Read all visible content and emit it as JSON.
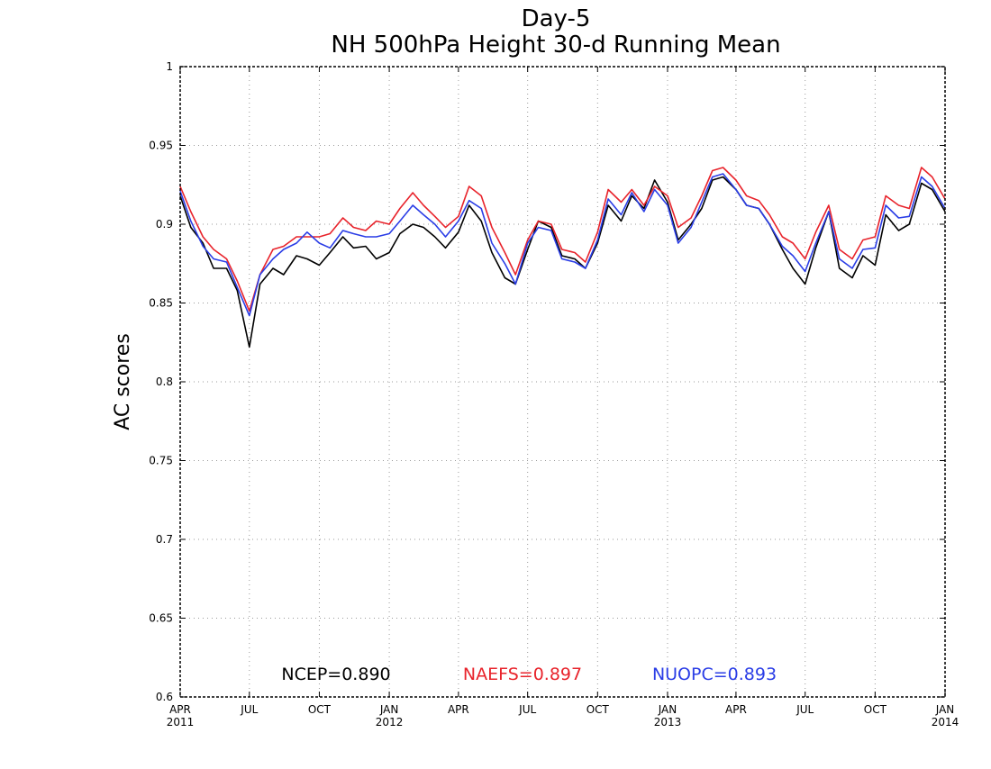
{
  "chart_data": {
    "type": "line",
    "title": "Day-5",
    "subtitle": "NH 500hPa Height 30-d Running Mean",
    "xlabel": "",
    "ylabel": "AC scores",
    "ylim": [
      0.6,
      1.0
    ],
    "xlim": [
      "2011-04-01",
      "2014-01-01"
    ],
    "grid": true,
    "legend_placement": "bottom-center",
    "x_ticks": [
      {
        "date": "2011-04-01",
        "label": "APR",
        "year": "2011"
      },
      {
        "date": "2011-07-01",
        "label": "JUL",
        "year": ""
      },
      {
        "date": "2011-10-01",
        "label": "OCT",
        "year": ""
      },
      {
        "date": "2012-01-01",
        "label": "JAN",
        "year": "2012"
      },
      {
        "date": "2012-04-01",
        "label": "APR",
        "year": ""
      },
      {
        "date": "2012-07-01",
        "label": "JUL",
        "year": ""
      },
      {
        "date": "2012-10-01",
        "label": "OCT",
        "year": ""
      },
      {
        "date": "2013-01-01",
        "label": "JAN",
        "year": "2013"
      },
      {
        "date": "2013-04-01",
        "label": "APR",
        "year": ""
      },
      {
        "date": "2013-07-01",
        "label": "JUL",
        "year": ""
      },
      {
        "date": "2013-10-01",
        "label": "OCT",
        "year": ""
      },
      {
        "date": "2014-01-01",
        "label": "JAN",
        "year": "2014"
      }
    ],
    "y_ticks": [
      {
        "value": 0.6,
        "label": "0.6"
      },
      {
        "value": 0.65,
        "label": "0.65"
      },
      {
        "value": 0.7,
        "label": "0.7"
      },
      {
        "value": 0.75,
        "label": "0.75"
      },
      {
        "value": 0.8,
        "label": "0.8"
      },
      {
        "value": 0.85,
        "label": "0.85"
      },
      {
        "value": 0.9,
        "label": "0.9"
      },
      {
        "value": 0.95,
        "label": "0.95"
      },
      {
        "value": 1.0,
        "label": "1"
      }
    ],
    "x": [
      "2011-04-01",
      "2011-04-15",
      "2011-05-01",
      "2011-05-15",
      "2011-06-01",
      "2011-06-15",
      "2011-07-01",
      "2011-07-15",
      "2011-08-01",
      "2011-08-15",
      "2011-09-01",
      "2011-09-15",
      "2011-10-01",
      "2011-10-15",
      "2011-11-01",
      "2011-11-15",
      "2011-12-01",
      "2011-12-15",
      "2012-01-01",
      "2012-01-15",
      "2012-02-01",
      "2012-02-15",
      "2012-03-01",
      "2012-03-15",
      "2012-04-01",
      "2012-04-15",
      "2012-05-01",
      "2012-05-15",
      "2012-06-01",
      "2012-06-15",
      "2012-07-01",
      "2012-07-15",
      "2012-08-01",
      "2012-08-15",
      "2012-09-01",
      "2012-09-15",
      "2012-10-01",
      "2012-10-15",
      "2012-11-01",
      "2012-11-15",
      "2012-12-01",
      "2012-12-15",
      "2013-01-01",
      "2013-01-15",
      "2013-02-01",
      "2013-02-15",
      "2013-03-01",
      "2013-03-15",
      "2013-04-01",
      "2013-04-15",
      "2013-05-01",
      "2013-05-15",
      "2013-06-01",
      "2013-06-15",
      "2013-07-01",
      "2013-07-15",
      "2013-08-01",
      "2013-08-15",
      "2013-09-01",
      "2013-09-15",
      "2013-10-01",
      "2013-10-15",
      "2013-11-01",
      "2013-11-15",
      "2013-12-01",
      "2013-12-15",
      "2014-01-01"
    ],
    "series": [
      {
        "name": "NCEP",
        "color": "#000000",
        "values": [
          0.918,
          0.898,
          0.888,
          0.872,
          0.872,
          0.858,
          0.822,
          0.862,
          0.872,
          0.868,
          0.88,
          0.878,
          0.874,
          0.882,
          0.892,
          0.885,
          0.886,
          0.878,
          0.882,
          0.894,
          0.9,
          0.898,
          0.892,
          0.885,
          0.895,
          0.912,
          0.902,
          0.882,
          0.866,
          0.862,
          0.884,
          0.902,
          0.898,
          0.88,
          0.878,
          0.872,
          0.888,
          0.912,
          0.902,
          0.918,
          0.91,
          0.928,
          0.914,
          0.89,
          0.9,
          0.91,
          0.928,
          0.93,
          0.922,
          0.912,
          0.91,
          0.9,
          0.884,
          0.872,
          0.862,
          0.885,
          0.908,
          0.872,
          0.866,
          0.88,
          0.874,
          0.906,
          0.896,
          0.9,
          0.926,
          0.922,
          0.908
        ]
      },
      {
        "name": "NAEFS",
        "color": "#e8232b",
        "values": [
          0.924,
          0.908,
          0.892,
          0.884,
          0.878,
          0.864,
          0.845,
          0.868,
          0.884,
          0.886,
          0.892,
          0.892,
          0.892,
          0.894,
          0.904,
          0.898,
          0.896,
          0.902,
          0.9,
          0.91,
          0.92,
          0.912,
          0.905,
          0.898,
          0.905,
          0.924,
          0.918,
          0.898,
          0.882,
          0.868,
          0.89,
          0.902,
          0.9,
          0.884,
          0.882,
          0.876,
          0.895,
          0.922,
          0.914,
          0.922,
          0.912,
          0.924,
          0.918,
          0.898,
          0.904,
          0.918,
          0.934,
          0.936,
          0.928,
          0.918,
          0.915,
          0.906,
          0.892,
          0.888,
          0.878,
          0.895,
          0.912,
          0.884,
          0.878,
          0.89,
          0.892,
          0.918,
          0.912,
          0.91,
          0.936,
          0.93,
          0.916
        ]
      },
      {
        "name": "NUOPC",
        "color": "#2a3de6",
        "values": [
          0.921,
          0.902,
          0.886,
          0.878,
          0.876,
          0.86,
          0.842,
          0.868,
          0.878,
          0.884,
          0.888,
          0.895,
          0.888,
          0.885,
          0.896,
          0.894,
          0.892,
          0.892,
          0.894,
          0.902,
          0.912,
          0.906,
          0.9,
          0.892,
          0.902,
          0.915,
          0.91,
          0.888,
          0.875,
          0.862,
          0.888,
          0.898,
          0.896,
          0.878,
          0.876,
          0.872,
          0.89,
          0.916,
          0.906,
          0.92,
          0.908,
          0.922,
          0.912,
          0.888,
          0.898,
          0.914,
          0.93,
          0.932,
          0.922,
          0.912,
          0.91,
          0.9,
          0.886,
          0.88,
          0.87,
          0.888,
          0.908,
          0.878,
          0.872,
          0.884,
          0.885,
          0.912,
          0.904,
          0.905,
          0.93,
          0.924,
          0.91
        ]
      }
    ],
    "legend": [
      {
        "text": "NCEP=0.890",
        "color": "#000000"
      },
      {
        "text": "NAEFS=0.897",
        "color": "#e8232b"
      },
      {
        "text": "NUOPC=0.893",
        "color": "#2a3de6"
      }
    ]
  }
}
